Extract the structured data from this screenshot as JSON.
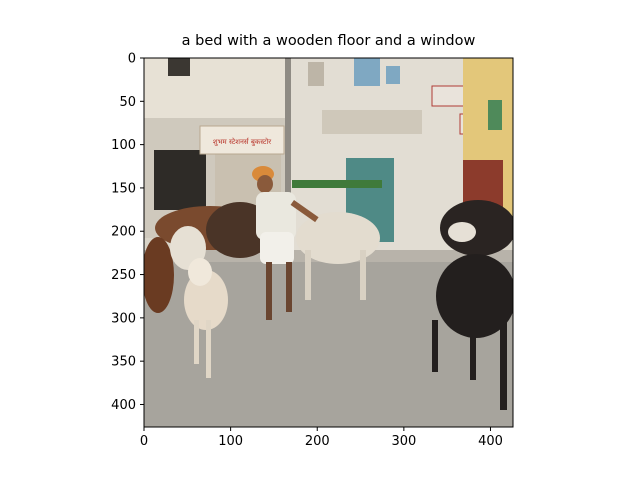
{
  "title": "a bed with a wooden floor and a window",
  "axes": {
    "x_ticks": [
      0,
      100,
      200,
      300,
      400
    ],
    "y_ticks": [
      0,
      50,
      100,
      150,
      200,
      250,
      300,
      350,
      400
    ],
    "xlim": [
      0,
      426
    ],
    "ylim": [
      426,
      0
    ]
  },
  "photo": {
    "shop_sign_text": "शुभम स्टेशनर्स बुकस्टोर",
    "colors": {
      "sky": "#dfe4e8",
      "wall": "#d9d4c8",
      "road": "#a7a49d",
      "door": "#4f8a86",
      "cow_white": "#e6e0d4",
      "cow_brown": "#6a3b22",
      "cow_black": "#231f1e",
      "turban": "#d98a3a"
    }
  }
}
